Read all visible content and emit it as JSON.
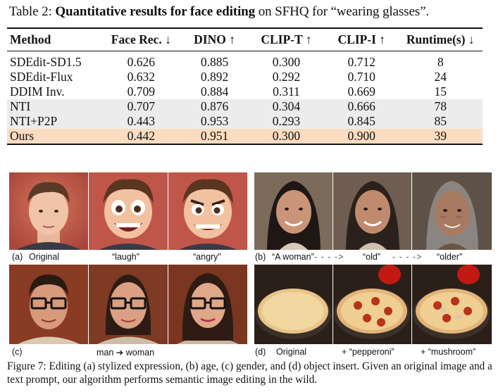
{
  "table_caption": {
    "prefix": "Table 2: ",
    "bold": "Quantitative results for face editing",
    "suffix": " on SFHQ for “wearing glasses”."
  },
  "table": {
    "headers": [
      "Method",
      "Face Rec. ↓",
      "DINO ↑",
      "CLIP-T ↑",
      "CLIP-I ↑",
      "Runtime(s) ↓"
    ],
    "rows": [
      [
        "SDEdit-SD1.5",
        "0.626",
        "0.885",
        "0.300",
        "0.712",
        "8"
      ],
      [
        "SDEdit-Flux",
        "0.632",
        "0.892",
        "0.292",
        "0.710",
        "24"
      ],
      [
        "DDIM Inv.",
        "0.709",
        "0.884",
        "0.311",
        "0.669",
        "15"
      ],
      [
        "NTI",
        "0.707",
        "0.876",
        "0.304",
        "0.666",
        "78"
      ],
      [
        "NTI+P2P",
        "0.443",
        "0.953",
        "0.293",
        "0.845",
        "85"
      ],
      [
        "Ours",
        "0.442",
        "0.951",
        "0.300",
        "0.900",
        "39"
      ]
    ]
  },
  "labels": {
    "a_tag": "(a)",
    "a_original": "Original",
    "a_laugh": "“laugh”",
    "a_angry": "“angry”",
    "b_tag": "(b)",
    "b_woman": "“A woman”",
    "b_arrow": "- - - ->",
    "b_old": "“old”",
    "b_older": "“older”",
    "c_tag": "(c)",
    "c_edit": "man ➔ woman",
    "d_tag": "(d)",
    "d_original": "Original",
    "d_pepperoni": "+ “pepperoni”",
    "d_mushroom": "+ “mushroom”"
  },
  "figure_caption": "Figure 7: Editing (a) stylized expression, (b) age, (c) gender, and (d) object insert. Given an original image and a text prompt, our algorithm performs semantic image editing in the wild.",
  "colors": {
    "ours_row": "#fbdcc0",
    "gray_rows": "#ececec",
    "panel_a_bg": "#c0564a",
    "panel_b_bg": "#6b5b4e",
    "panel_c_bg": "#8a3b24",
    "panel_d_bg": "#2b1f1a"
  }
}
